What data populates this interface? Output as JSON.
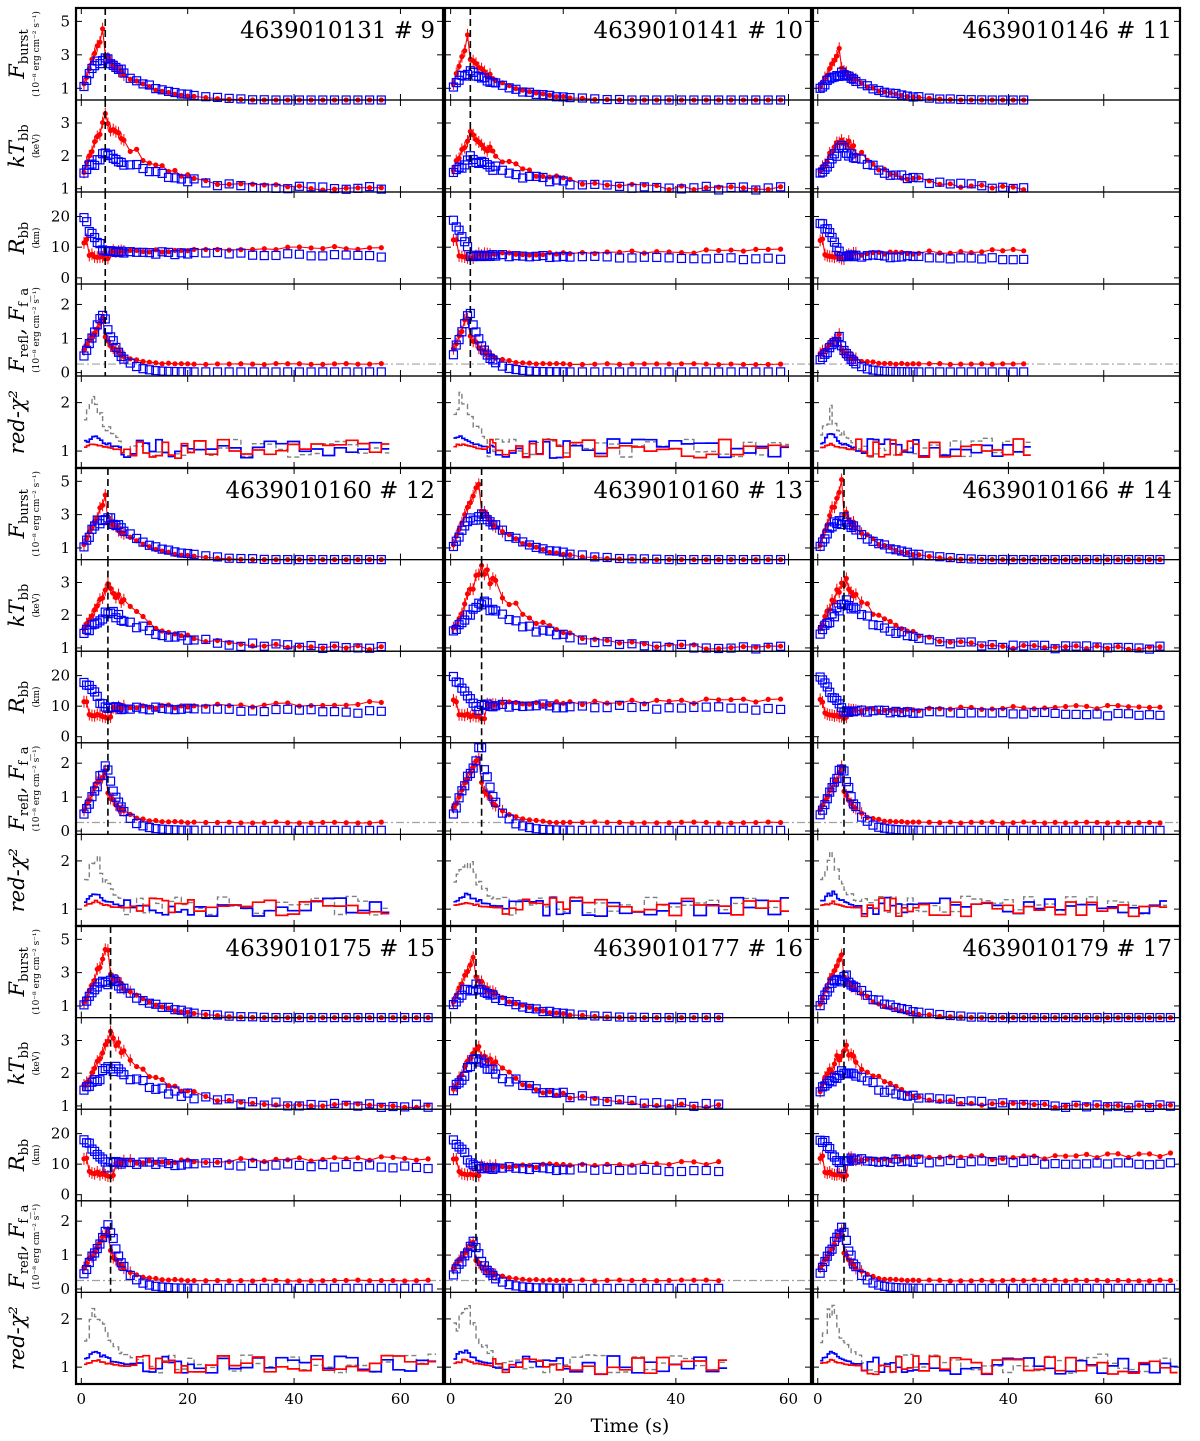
{
  "figure": {
    "xlabel": "Time (s)",
    "row_labels": [
      {
        "main": "F",
        "sub": "burst",
        "unit": "(10⁻⁸ erg cm⁻² s⁻¹)"
      },
      {
        "main": "kT",
        "sub": "bb",
        "unit": "(keV)"
      },
      {
        "main": "R",
        "sub": "bb",
        "unit": "(km)"
      },
      {
        "main": "F",
        "sub": "refl",
        "extra": ", F",
        "extra_sub": "f_a",
        "unit": "(10⁻⁸ erg cm⁻² s⁻¹)"
      },
      {
        "main": "red-χ²",
        "sub": "",
        "unit": ""
      }
    ],
    "colors": {
      "model_a": "#ff0000",
      "model_b": "#0000ff",
      "persistent": "#808080",
      "peak_line": "#000000",
      "level_line": "#a0a0a0"
    }
  },
  "chart_data": {
    "type": "scatter",
    "description_scheme": "3x3 grid of burst blocks; each block has 5 stacked panels sharing the time axis",
    "row_yticks": [
      {
        "ticks": [
          1,
          3,
          5
        ],
        "ylim": [
          0.3,
          5.8
        ]
      },
      {
        "ticks": [
          1,
          2,
          3
        ],
        "ylim": [
          0.9,
          3.7
        ]
      },
      {
        "ticks": [
          0,
          10,
          20
        ],
        "ylim": [
          -2,
          28
        ]
      },
      {
        "ticks": [
          0,
          1,
          2
        ],
        "ylim": [
          -0.1,
          2.6
        ]
      },
      {
        "ticks": [
          1,
          2
        ],
        "ylim": [
          0.65,
          2.55
        ]
      }
    ],
    "column_xaxes": [
      {
        "xlim": [
          -1,
          68
        ],
        "ticks": [
          0,
          20,
          40,
          60
        ]
      },
      {
        "xlim": [
          -1,
          64
        ],
        "ticks": [
          0,
          20,
          40,
          60
        ]
      },
      {
        "xlim": [
          -1,
          76
        ],
        "ticks": [
          0,
          20,
          40,
          60
        ]
      }
    ],
    "bursts": [
      {
        "label": "4639010131 # 9",
        "row": 0,
        "col": 0,
        "peak": 4.5,
        "duration": 58,
        "fmax_a": 4.8,
        "fmax_b": 2.6,
        "tmax_a": 3.1,
        "tmax_b": 2.1,
        "rpersist": 8.5,
        "reflmax": 1.6,
        "chimax": 2.1
      },
      {
        "label": "4639010141 # 10",
        "row": 0,
        "col": 1,
        "peak": 3.5,
        "duration": 60,
        "fmax_a": 4.5,
        "fmax_b": 1.8,
        "tmax_a": 2.7,
        "tmax_b": 1.9,
        "rpersist": 7.5,
        "reflmax": 1.7,
        "chimax": 2.2
      },
      {
        "label": "4639010146 # 11",
        "row": 0,
        "col": 2,
        "peak": null,
        "duration": 44,
        "fmax_a": 3.5,
        "fmax_b": 1.7,
        "tmax_a": 2.6,
        "tmax_b": 2.2,
        "rpersist": 7.5,
        "reflmax": 0.8,
        "chimax": 1.8
      },
      {
        "label": "4639010160 # 12",
        "row": 1,
        "col": 0,
        "peak": 5.0,
        "duration": 58,
        "fmax_a": 4.4,
        "fmax_b": 2.6,
        "tmax_a": 2.9,
        "tmax_b": 2.1,
        "rpersist": 9.5,
        "reflmax": 1.8,
        "chimax": 2.1
      },
      {
        "label": "4639010160 # 13",
        "row": 1,
        "col": 1,
        "peak": 5.5,
        "duration": 60,
        "fmax_a": 5.4,
        "fmax_b": 2.8,
        "tmax_a": 3.5,
        "tmax_b": 2.4,
        "rpersist": 10.5,
        "reflmax": 2.3,
        "chimax": 2.1
      },
      {
        "label": "4639010166 # 14",
        "row": 1,
        "col": 2,
        "peak": 5.5,
        "duration": 73,
        "fmax_a": 5.3,
        "fmax_b": 2.5,
        "tmax_a": 3.1,
        "tmax_b": 2.4,
        "rpersist": 8.5,
        "reflmax": 1.8,
        "chimax": 2.1
      },
      {
        "label": "4639010175 # 15",
        "row": 2,
        "col": 0,
        "peak": 5.5,
        "duration": 67,
        "fmax_a": 4.9,
        "fmax_b": 2.4,
        "tmax_a": 3.1,
        "tmax_b": 2.2,
        "rpersist": 10.5,
        "reflmax": 1.7,
        "chimax": 2.3
      },
      {
        "label": "4639010177 # 16",
        "row": 2,
        "col": 1,
        "peak": 4.5,
        "duration": 48,
        "fmax_a": 4.4,
        "fmax_b": 2.0,
        "tmax_a": 2.8,
        "tmax_b": 2.4,
        "rpersist": 9.0,
        "reflmax": 1.2,
        "chimax": 2.4
      },
      {
        "label": "4639010179 # 17",
        "row": 2,
        "col": 2,
        "peak": 5.5,
        "duration": 75,
        "fmax_a": 4.6,
        "fmax_b": 2.6,
        "tmax_a": 2.8,
        "tmax_b": 2.1,
        "rpersist": 11.5,
        "reflmax": 1.7,
        "chimax": 2.3
      }
    ]
  }
}
